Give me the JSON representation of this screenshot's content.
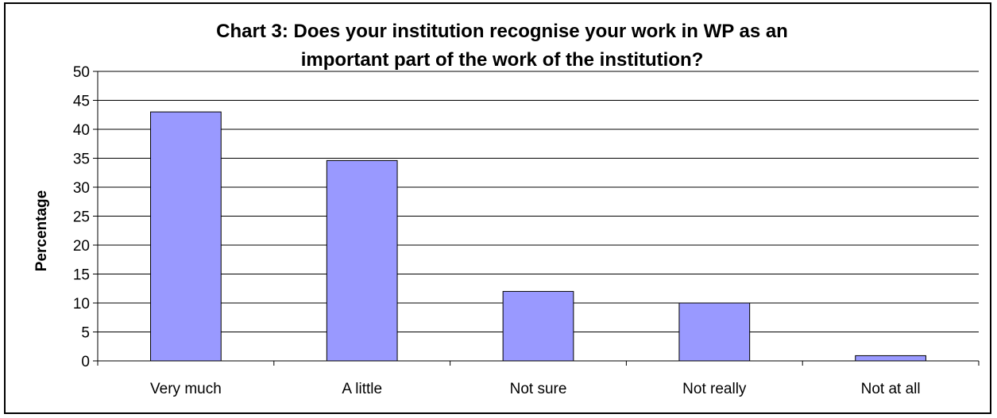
{
  "chart_data": {
    "type": "bar",
    "title": "Chart 3: Does your institution recognise your work in WP as an important part of the work of the institution?",
    "title_lines": [
      "Chart 3: Does your institution recognise your work in WP as an",
      "important part of the work of the institution?"
    ],
    "xlabel": "",
    "ylabel": "Percentage",
    "categories": [
      "Very much",
      "A little",
      "Not sure",
      "Not really",
      "Not at all"
    ],
    "values": [
      43,
      34.6,
      12,
      10,
      0.9
    ],
    "ylim": [
      0,
      50
    ],
    "yticks": [
      0,
      5,
      10,
      15,
      20,
      25,
      30,
      35,
      40,
      45,
      50
    ],
    "grid": true,
    "legend": "none",
    "colors": {
      "bar_fill": "#9999ff",
      "bar_stroke": "#000000",
      "grid": "#000000",
      "axis": "#000000"
    }
  }
}
